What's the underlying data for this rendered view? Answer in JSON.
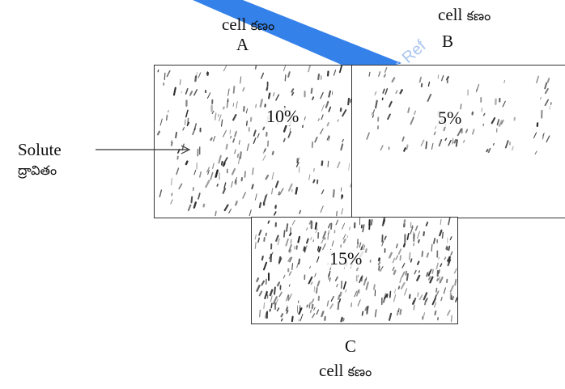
{
  "cells": [
    {
      "id": "A",
      "caption": "cell",
      "caption_te": "కణం",
      "concentration": "10%"
    },
    {
      "id": "B",
      "caption": "cell",
      "caption_te": "కణం",
      "concentration": "5%"
    },
    {
      "id": "C",
      "caption": "cell",
      "caption_te": "కణం",
      "concentration": "15%"
    }
  ],
  "solute": {
    "label": "Solute",
    "label_te": "ద్రావితం"
  },
  "watermark": {
    "text": "Your Ref",
    "color": "#1e73e8"
  },
  "colors": {
    "border": "#333333",
    "particle": "#1a1a1a",
    "arrow": "#333333"
  }
}
